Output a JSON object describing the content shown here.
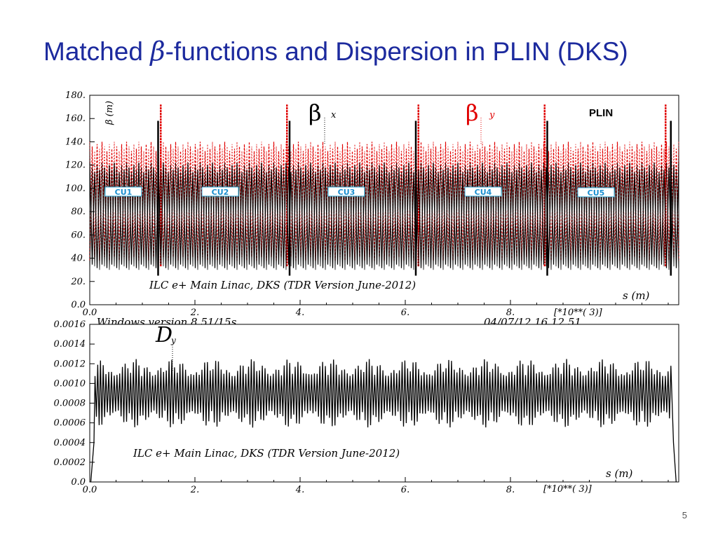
{
  "slide": {
    "title_pre": "Matched ",
    "title_beta": "β",
    "title_post": "-functions and Dispersion in PLIN (DKS)",
    "page_number": "5"
  },
  "colors": {
    "title": "#1c2a9e",
    "beta_x": "#000000",
    "beta_y": "#e00000",
    "cu_label": "#1a8fd0"
  },
  "chart_data": [
    {
      "type": "line",
      "ylabel": "β (m)",
      "ylim": [
        0,
        180
      ],
      "xlim": [
        0,
        11.2
      ],
      "y_ticks": [
        "180.",
        "160.",
        "140.",
        "120.",
        "100.",
        "80.",
        "60.",
        "40.",
        "20.",
        "0.0"
      ],
      "x_ticks": [
        "0.0",
        "2.",
        "4.",
        "6.",
        "8."
      ],
      "x_multiplier": "[*10**( 3)]",
      "x_axis_label": "s (m)",
      "annotation": "ILC e+ Main Linac, DKS (TDR Version June-2012)",
      "footer_left": "Windows version 8.51/15s",
      "footer_right": "04/07/12  16.12.51",
      "panel_label": "PLIN",
      "section_labels": [
        "CU1",
        "CU2",
        "CU3",
        "CU4",
        "CU5"
      ],
      "series": [
        {
          "name": "βx",
          "name_main": "β",
          "name_sub": "x",
          "style": "solid",
          "color": "#000000",
          "oscillation_range": [
            30,
            122
          ],
          "boundary_spikes_x": [
            1.3,
            3.8,
            6.2,
            8.7,
            11.05
          ],
          "boundary_spike_peak": 158
        },
        {
          "name": "βy",
          "name_main": "β",
          "name_sub": "y",
          "style": "dashed",
          "color": "#e00000",
          "oscillation_range": [
            38,
            140
          ],
          "boundary_spikes_x": [
            1.35,
            3.75,
            6.25,
            8.65,
            10.95
          ],
          "boundary_spike_peak": 172
        }
      ]
    },
    {
      "type": "line",
      "ylim": [
        0,
        0.0016
      ],
      "xlim": [
        0,
        11.2
      ],
      "y_ticks": [
        "0.0016",
        "0.0014",
        "0.0012",
        "0.0010",
        "0.0008",
        "0.0006",
        "0.0004",
        "0.0002",
        "0.0"
      ],
      "x_ticks": [
        "0.0",
        "2.",
        "4.",
        "6.",
        "8."
      ],
      "x_multiplier": "[*10**( 3)]",
      "x_axis_label": "s (m)",
      "annotation": "ILC e+ Main Linac, DKS (TDR Version June-2012)",
      "series": [
        {
          "name": "Dy",
          "name_main": "D",
          "name_sub": "y",
          "style": "solid",
          "color": "#000000",
          "oscillation_range": [
            0.00055,
            0.00125
          ],
          "mean": 0.0009
        }
      ]
    }
  ]
}
